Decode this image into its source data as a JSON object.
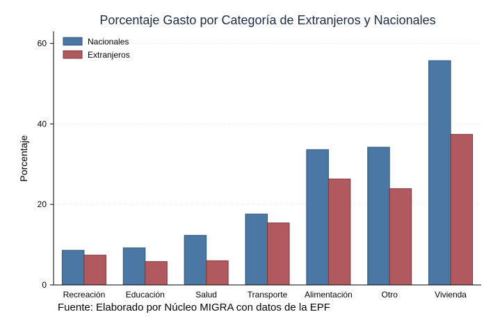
{
  "chart_data": {
    "type": "bar",
    "title": "Porcentaje Gasto por Categoría de Extranjeros y Nacionales",
    "xlabel": "",
    "ylabel": "Porcentaje",
    "ylim": [
      0,
      63
    ],
    "yticks": [
      0,
      20,
      40,
      60
    ],
    "grid": true,
    "legend_position": "top-left",
    "categories": [
      "Recreación",
      "Educación",
      "Salud",
      "Transporte",
      "Alimentación",
      "Otro",
      "Vivienda"
    ],
    "series": [
      {
        "name": "Nacionales",
        "color": "#4a77a3",
        "values": [
          8.6,
          9.2,
          12.3,
          17.6,
          33.6,
          34.2,
          55.7
        ]
      },
      {
        "name": "Extranjeros",
        "color": "#b05a5f",
        "values": [
          7.4,
          5.8,
          6.0,
          15.4,
          26.3,
          23.9,
          37.4
        ]
      }
    ],
    "source_note": "Fuente: Elaborado por Núcleo MIGRA con datos de la EPF"
  }
}
